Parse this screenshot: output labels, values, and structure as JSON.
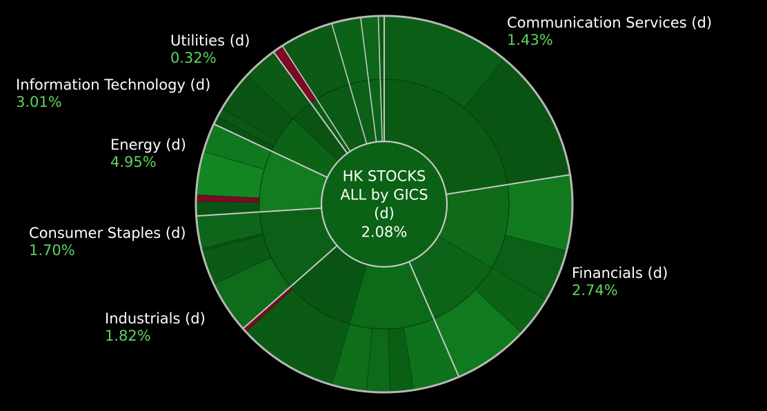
{
  "colors": {
    "background": "#000000",
    "positive_text": "#5fd35f",
    "border": "#b8b8b8",
    "separator": "#c8c8c8",
    "negative": "#7a0a25"
  },
  "chart_data": {
    "type": "sunburst",
    "title": "",
    "center": {
      "lines": [
        "HK STOCKS",
        "ALL by GICS",
        "(d)"
      ],
      "value": "2.08%"
    },
    "sectors": [
      {
        "name": "Communication Services (d)",
        "value": "1.43%",
        "change": 1.43,
        "share": 0.225,
        "color": "#0b5a14",
        "inner": [
          {
            "share": 0.225,
            "color": "#0b5a14"
          }
        ],
        "outer": [
          {
            "share": 0.11,
            "color": "#0b5e15"
          },
          {
            "share": 0.115,
            "color": "#0a5413"
          }
        ]
      },
      {
        "name": "Financials (d)",
        "value": "2.74%",
        "change": 2.74,
        "share": 0.21,
        "color": "#0e6e1a",
        "inner": [
          {
            "share": 0.11,
            "color": "#0f6b1a"
          },
          {
            "share": 0.1,
            "color": "#0d6418"
          }
        ],
        "outer": [
          {
            "share": 0.065,
            "color": "#117a1e"
          },
          {
            "share": 0.045,
            "color": "#0c5f17"
          },
          {
            "share": 0.035,
            "color": "#0c6217"
          },
          {
            "share": 0.065,
            "color": "#107a1e"
          }
        ]
      },
      {
        "name": "Industrials (d)",
        "value": "1.82%",
        "change": 1.82,
        "share": 0.2,
        "color": "#0c6618",
        "inner": [
          {
            "share": 0.11,
            "color": "#0d6a19"
          },
          {
            "share": 0.09,
            "color": "#0a5514"
          }
        ],
        "outer": [
          {
            "share": 0.04,
            "color": "#0f721c"
          },
          {
            "share": 0.02,
            "color": "#0b5e16"
          },
          {
            "share": 0.02,
            "color": "#0d6a19"
          },
          {
            "share": 0.03,
            "color": "#0e6e1a"
          },
          {
            "share": 0.086,
            "color": "#0b5b15"
          },
          {
            "share": 0.004,
            "color": "#7a0a25"
          }
        ]
      },
      {
        "name": "Consumer Staples (d)",
        "value": "1.70%",
        "change": 1.7,
        "share": 0.105,
        "color": "#0c5f17",
        "inner": [
          {
            "share": 0.105,
            "color": "#0c5f17"
          }
        ],
        "outer": [
          {
            "share": 0.045,
            "color": "#0e6c1a"
          },
          {
            "share": 0.03,
            "color": "#0b5a15"
          },
          {
            "share": 0.002,
            "color": "#0a5313"
          },
          {
            "share": 0.028,
            "color": "#0d6619"
          }
        ]
      },
      {
        "name": "Energy (d)",
        "value": "4.95%",
        "change": 4.95,
        "share": 0.08,
        "color": "#0f7a1e",
        "inner": [
          {
            "share": 0.08,
            "color": "#117d1f"
          }
        ],
        "outer": [
          {
            "share": 0.012,
            "color": "#0a5413"
          },
          {
            "share": 0.006,
            "color": "#7a0a25"
          },
          {
            "share": 0.037,
            "color": "#128621"
          },
          {
            "share": 0.025,
            "color": "#10781e"
          }
        ]
      },
      {
        "name": "Information Technology (d)",
        "value": "3.01%",
        "change": 3.01,
        "share": 0.08,
        "color": "#0b5b15",
        "inner": [
          {
            "share": 0.05,
            "color": "#0c6217"
          },
          {
            "share": 0.03,
            "color": "#0a5313"
          }
        ],
        "outer": [
          {
            "share": 0.007,
            "color": "#0a5013"
          },
          {
            "share": 0.008,
            "color": "#0b5815"
          },
          {
            "share": 0.035,
            "color": "#0a5313"
          },
          {
            "share": 0.03,
            "color": "#0b5a15"
          }
        ]
      },
      {
        "name": "Utilities (d)",
        "value": "0.32%",
        "change": 0.32,
        "share": 0.1,
        "color": "#0a5513",
        "inner": [
          {
            "share": 0.055,
            "color": "#0b5a15"
          },
          {
            "share": 0.025,
            "color": "#0c5f17"
          },
          {
            "share": 0.015,
            "color": "#0c6217"
          },
          {
            "share": 0.005,
            "color": "#0b5815"
          }
        ],
        "outer": [
          {
            "share": 0.009,
            "color": "#7a0a25"
          },
          {
            "share": 0.046,
            "color": "#0b5a15"
          },
          {
            "share": 0.025,
            "color": "#0c6217"
          },
          {
            "share": 0.015,
            "color": "#0d6619"
          },
          {
            "share": 0.005,
            "color": "#0b5815"
          }
        ]
      }
    ]
  }
}
